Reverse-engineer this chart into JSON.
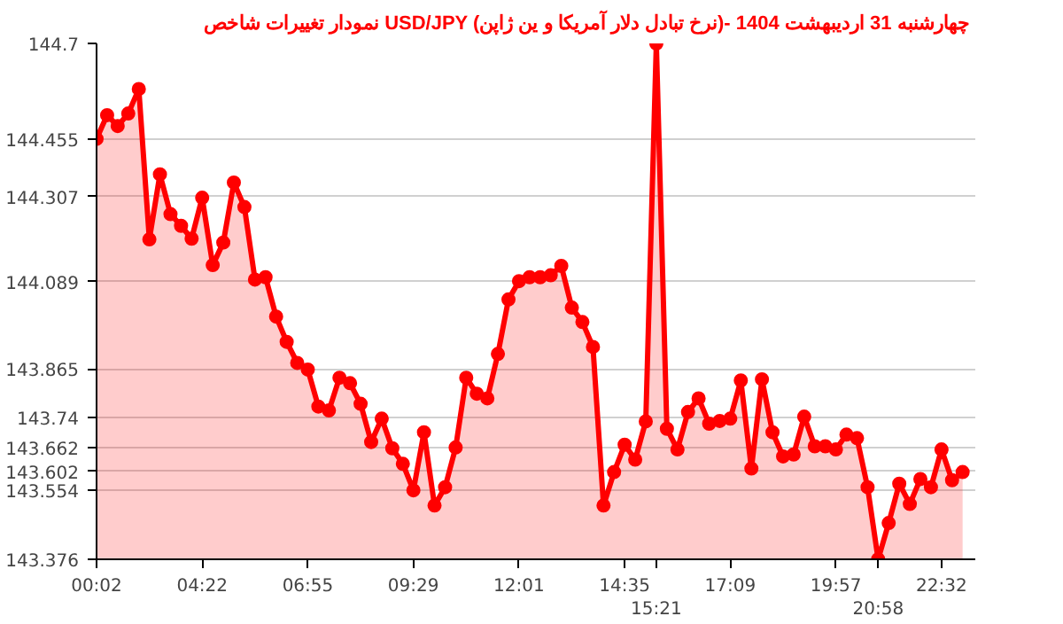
{
  "chart_data": {
    "type": "area",
    "title": "نمودار تغییرات شاخص USD/JPY (نرخ تبادل دلار آمریکا و ین ژاپن)- چهارشنبه  31 اردیبهشت 1404",
    "categories": [
      "00:02",
      null,
      null,
      null,
      null,
      null,
      null,
      null,
      null,
      null,
      "04:22",
      null,
      null,
      null,
      null,
      null,
      null,
      null,
      null,
      null,
      "06:55",
      null,
      null,
      null,
      null,
      null,
      null,
      null,
      null,
      null,
      "09:29",
      null,
      null,
      null,
      null,
      null,
      null,
      null,
      null,
      null,
      "12:01",
      null,
      null,
      null,
      null,
      null,
      null,
      null,
      null,
      null,
      "14:35",
      null,
      null,
      "15:21",
      null,
      null,
      null,
      null,
      null,
      null,
      "17:09",
      null,
      null,
      null,
      null,
      null,
      null,
      null,
      null,
      null,
      "19:57",
      null,
      null,
      null,
      "20:58",
      null,
      null,
      null,
      null,
      null,
      "22:32",
      null,
      null
    ],
    "series": [
      {
        "color": "#ff0000",
        "values": [
          144.455,
          144.516,
          144.488,
          144.52,
          144.583,
          144.197,
          144.364,
          144.262,
          144.232,
          144.199,
          144.304,
          144.131,
          144.189,
          144.343,
          144.28,
          144.094,
          144.1,
          143.999,
          143.934,
          143.88,
          143.863,
          143.768,
          143.758,
          143.842,
          143.828,
          143.775,
          143.677,
          143.737,
          143.661,
          143.621,
          143.553,
          143.702,
          143.514,
          143.561,
          143.663,
          143.842,
          143.801,
          143.789,
          143.903,
          144.043,
          144.09,
          144.1,
          144.1,
          144.105,
          144.129,
          144.022,
          143.985,
          143.921,
          143.514,
          143.6,
          143.67,
          143.632,
          143.73,
          144.7,
          143.711,
          143.658,
          143.754,
          143.789,
          143.724,
          143.731,
          143.737,
          143.835,
          143.609,
          143.838,
          143.702,
          143.64,
          143.645,
          143.742,
          143.666,
          143.666,
          143.658,
          143.696,
          143.687,
          143.561,
          143.376,
          143.469,
          143.57,
          143.518,
          143.582,
          143.561,
          143.658,
          143.579,
          143.6
        ]
      }
    ],
    "ylim": [
      143.376,
      144.7
    ],
    "yticks": [
      143.376,
      143.554,
      143.602,
      143.662,
      143.74,
      143.865,
      144.089,
      144.307,
      144.455,
      144.7
    ],
    "grid": "y",
    "marker": "circle",
    "line_style": "solid"
  }
}
